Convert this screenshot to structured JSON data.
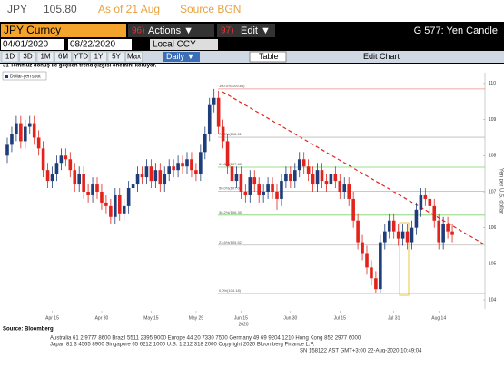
{
  "header": {
    "ticker": "JPY",
    "price": "105.80",
    "as_of": "As of 21 Aug",
    "source": "Source BGN"
  },
  "toolbar": {
    "security": "JPY Curncy",
    "actions_num": "96)",
    "actions": "Actions ▼",
    "edit_num": "97)",
    "edit": "Edit ▼",
    "title": "G 577: Yen Candle",
    "start_date": "04/01/2020",
    "end_date": "08/22/2020",
    "currency": "Local CCY",
    "periods": [
      "1D",
      "3D",
      "1M",
      "6M",
      "YTD",
      "1Y",
      "5Y",
      "Max"
    ],
    "frequency": "Daily ▼",
    "table": "Table",
    "edit_chart": "Edit Chart"
  },
  "chart_data": {
    "type": "candlestick",
    "subtitle": "31 Temmuz dönüş ile geçilen trend çizgisi önemini koruyor.",
    "legend": "Dollar-yen spot",
    "y_label": "Yen per U.S. dollar",
    "year_label": "2020",
    "up_color": "#1f3d7a",
    "down_color": "#e3231b",
    "categories": [
      null,
      null,
      null,
      null,
      null,
      null,
      null,
      null,
      null,
      null,
      "Apr 15",
      null,
      null,
      null,
      null,
      null,
      null,
      null,
      null,
      null,
      null,
      "Apr 30",
      null,
      null,
      null,
      null,
      null,
      null,
      null,
      null,
      null,
      null,
      "May 15",
      null,
      null,
      null,
      null,
      null,
      null,
      null,
      null,
      null,
      "May 29",
      null,
      null,
      null,
      null,
      null,
      null,
      null,
      null,
      null,
      "Jun 15",
      null,
      null,
      null,
      null,
      null,
      null,
      null,
      null,
      null,
      null,
      "Jun 30",
      null,
      null,
      null,
      null,
      null,
      null,
      null,
      null,
      null,
      null,
      "Jul 15",
      null,
      null,
      null,
      null,
      null,
      null,
      null,
      null,
      null,
      null,
      null,
      "Jul 31",
      null,
      null,
      null,
      null,
      null,
      null,
      null,
      null,
      null,
      "Aug 14",
      null,
      null,
      null
    ],
    "open": [
      108.0,
      108.3,
      108.6,
      108.9,
      108.4,
      108.8,
      108.9,
      108.5,
      108.2,
      107.6,
      107.3,
      107.5,
      107.8,
      108.0,
      107.9,
      107.6,
      107.2,
      107.5,
      107.0,
      106.9,
      107.2,
      107.0,
      106.7,
      106.6,
      106.3,
      106.9,
      106.4,
      106.6,
      107.1,
      107.2,
      107.5,
      107.4,
      107.7,
      107.3,
      107.6,
      107.2,
      107.5,
      107.7,
      107.6,
      107.8,
      107.7,
      107.9,
      107.6,
      107.5,
      108.1,
      108.6,
      109.4,
      109.6,
      108.8,
      108.4,
      107.7,
      107.3,
      107.5,
      107.0,
      106.9,
      107.4,
      107.2,
      106.9,
      107.0,
      107.2,
      107.0,
      106.8,
      107.3,
      107.5,
      107.3,
      107.6,
      107.9,
      107.7,
      107.5,
      107.2,
      107.6,
      107.3,
      107.2,
      107.5,
      107.3,
      107.0,
      107.2,
      106.8,
      106.2,
      105.6,
      105.3,
      104.9,
      104.6,
      104.3,
      105.6,
      105.9,
      106.2,
      105.9,
      105.7,
      105.9,
      105.6,
      106.0,
      106.5,
      106.9,
      106.8,
      106.6,
      106.2,
      105.6,
      106.1,
      105.9
    ],
    "high": [
      108.5,
      108.8,
      109.1,
      109.1,
      109.0,
      109.1,
      109.1,
      108.7,
      108.4,
      107.8,
      107.7,
      108.0,
      108.2,
      108.2,
      108.1,
      107.8,
      107.7,
      107.7,
      107.2,
      107.4,
      107.4,
      107.2,
      106.9,
      106.8,
      107.1,
      107.1,
      106.8,
      107.3,
      107.4,
      107.7,
      107.7,
      107.9,
      107.9,
      107.8,
      107.8,
      107.7,
      107.9,
      107.9,
      108.0,
      108.0,
      108.1,
      108.1,
      107.8,
      108.3,
      108.8,
      109.6,
      109.85,
      109.8,
      109.0,
      108.6,
      107.9,
      107.7,
      107.7,
      107.2,
      107.6,
      107.6,
      107.4,
      107.2,
      107.4,
      107.4,
      107.2,
      107.5,
      107.7,
      107.7,
      107.8,
      108.1,
      108.1,
      107.9,
      107.7,
      107.8,
      107.8,
      107.5,
      107.7,
      107.7,
      107.5,
      107.4,
      107.4,
      107.0,
      106.4,
      105.8,
      105.5,
      105.1,
      104.8,
      105.8,
      106.1,
      106.4,
      106.4,
      106.1,
      106.1,
      106.1,
      106.2,
      106.7,
      107.1,
      107.1,
      107.0,
      106.8,
      106.4,
      106.3,
      106.3,
      106.1
    ],
    "low": [
      107.8,
      108.1,
      108.4,
      108.2,
      108.2,
      108.6,
      108.3,
      108.0,
      107.4,
      107.1,
      107.1,
      107.3,
      107.6,
      107.7,
      107.4,
      107.0,
      107.0,
      106.8,
      106.7,
      106.7,
      106.8,
      106.5,
      106.4,
      106.1,
      106.1,
      106.2,
      106.2,
      106.4,
      106.9,
      107.0,
      107.2,
      107.2,
      107.1,
      107.1,
      107.0,
      107.0,
      107.3,
      107.4,
      107.4,
      107.5,
      107.5,
      107.4,
      107.3,
      107.3,
      107.9,
      108.4,
      109.2,
      108.6,
      108.2,
      107.5,
      107.1,
      107.1,
      106.8,
      106.7,
      106.7,
      107.0,
      106.7,
      106.7,
      106.8,
      106.8,
      106.5,
      106.6,
      107.1,
      107.1,
      107.1,
      107.4,
      107.5,
      107.3,
      107.0,
      107.0,
      107.1,
      107.0,
      107.0,
      107.1,
      106.8,
      106.8,
      106.6,
      106.0,
      105.4,
      105.1,
      104.7,
      104.4,
      104.2,
      104.2,
      105.4,
      105.7,
      105.7,
      105.5,
      105.5,
      105.4,
      105.4,
      105.8,
      106.3,
      106.6,
      106.4,
      106.0,
      105.4,
      105.4,
      105.7,
      105.6
    ],
    "close": [
      108.3,
      108.6,
      108.9,
      108.4,
      108.8,
      108.9,
      108.5,
      108.2,
      107.6,
      107.3,
      107.5,
      107.8,
      108.0,
      107.9,
      107.6,
      107.2,
      107.5,
      107.0,
      106.9,
      107.2,
      107.0,
      106.7,
      106.6,
      106.3,
      106.9,
      106.4,
      106.6,
      107.1,
      107.2,
      107.5,
      107.4,
      107.7,
      107.3,
      107.6,
      107.2,
      107.5,
      107.7,
      107.6,
      107.8,
      107.7,
      107.9,
      107.6,
      107.5,
      108.1,
      108.6,
      109.4,
      109.6,
      108.8,
      108.4,
      107.7,
      107.3,
      107.5,
      107.0,
      106.9,
      107.4,
      107.2,
      106.9,
      107.0,
      107.2,
      107.0,
      106.8,
      107.3,
      107.5,
      107.3,
      107.6,
      107.9,
      107.7,
      107.5,
      107.2,
      107.6,
      107.3,
      107.2,
      107.5,
      107.3,
      107.0,
      107.2,
      106.8,
      106.2,
      105.6,
      105.3,
      104.9,
      104.6,
      104.3,
      105.6,
      105.9,
      106.2,
      105.9,
      105.7,
      105.9,
      105.6,
      106.0,
      106.5,
      106.9,
      106.8,
      106.6,
      106.2,
      105.6,
      106.1,
      105.9,
      105.8
    ],
    "ylim": [
      103.75,
      110.3
    ],
    "yticks": [
      104,
      105,
      106,
      107,
      108,
      109,
      110
    ],
    "fib_levels": [
      {
        "label": "100.0%(109.85)",
        "value": 109.85,
        "color": "#f08a8a"
      },
      {
        "label": "76.4%(108.51)",
        "value": 108.51,
        "color": "#bbbbbb"
      },
      {
        "label": "61.8%(107.68)",
        "value": 107.68,
        "color": "#7cd36b"
      },
      {
        "label": "50.0%(107.01)",
        "value": 107.01,
        "color": "#6fd0e8"
      },
      {
        "label": "38.2%(106.35)",
        "value": 106.35,
        "color": "#7cd36b"
      },
      {
        "label": "23.6%(105.52)",
        "value": 105.52,
        "color": "#bbbbbb"
      },
      {
        "label": "0.0%(104.18)",
        "value": 104.18,
        "color": "#f08a8a"
      }
    ],
    "source": "Source: Bloomberg"
  },
  "footer": {
    "lines": [
      "Australia 61 2 9777 8600 Brazil 5511 2395 9000 Europe 44 20 7330 7500 Germany 49 69 9204 1210 Hong Kong 852 2977 6000",
      "Japan 81 3 4565 8900 Singapore 65 6212 1000 U.S. 1 212 318 2000 Copyright 2020 Bloomberg Finance L.P.",
      "SN 158122 AST GMT+3:00 22-Aug-2020 10:49:04"
    ]
  }
}
